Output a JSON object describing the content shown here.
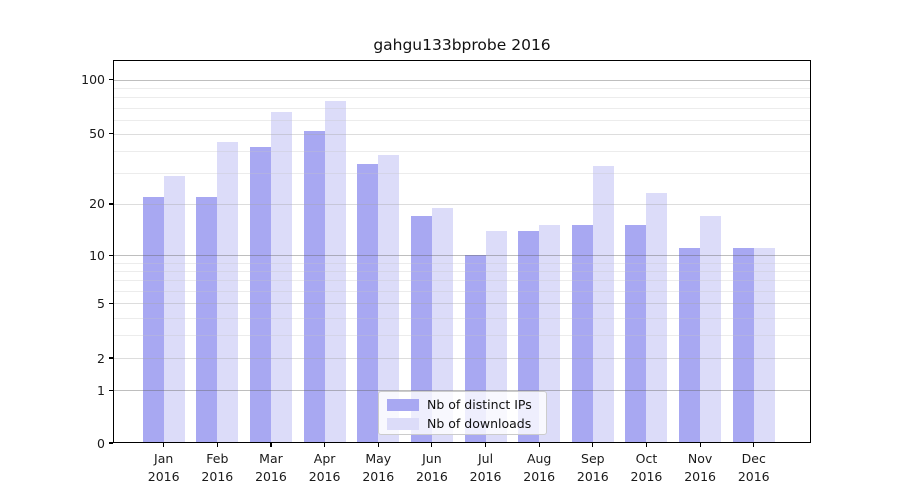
{
  "chart_data": {
    "type": "bar",
    "title": "gahgu133bprobe 2016",
    "categories": [
      "Jan 2016",
      "Feb 2016",
      "Mar 2016",
      "Apr 2016",
      "May 2016",
      "Jun 2016",
      "Jul 2016",
      "Aug 2016",
      "Sep 2016",
      "Oct 2016",
      "Nov 2016",
      "Dec 2016"
    ],
    "series": [
      {
        "name": "Nb of distinct IPs",
        "color": "#a8a8f2",
        "values": [
          22,
          22,
          42,
          52,
          34,
          17,
          10,
          14,
          15,
          15,
          11,
          11
        ]
      },
      {
        "name": "Nb of downloads",
        "color": "#dcdcf9",
        "values": [
          29,
          45,
          66,
          76,
          38,
          19,
          14,
          15,
          33,
          23,
          17,
          11
        ]
      }
    ],
    "xlabel": "",
    "ylabel": "",
    "y_scale": "log10(1+value)",
    "ylim": [
      0,
      128
    ],
    "y_ticks": [
      100,
      50,
      20,
      10,
      5,
      2,
      1,
      0
    ],
    "gridlines": {
      "major": [
        1,
        10,
        100
      ],
      "mid": [
        2,
        5,
        20,
        50
      ],
      "minor": [
        3,
        4,
        6,
        7,
        8,
        9,
        30,
        40,
        60,
        70,
        80,
        90
      ]
    },
    "grid": "on",
    "legend_position": "lower center"
  }
}
